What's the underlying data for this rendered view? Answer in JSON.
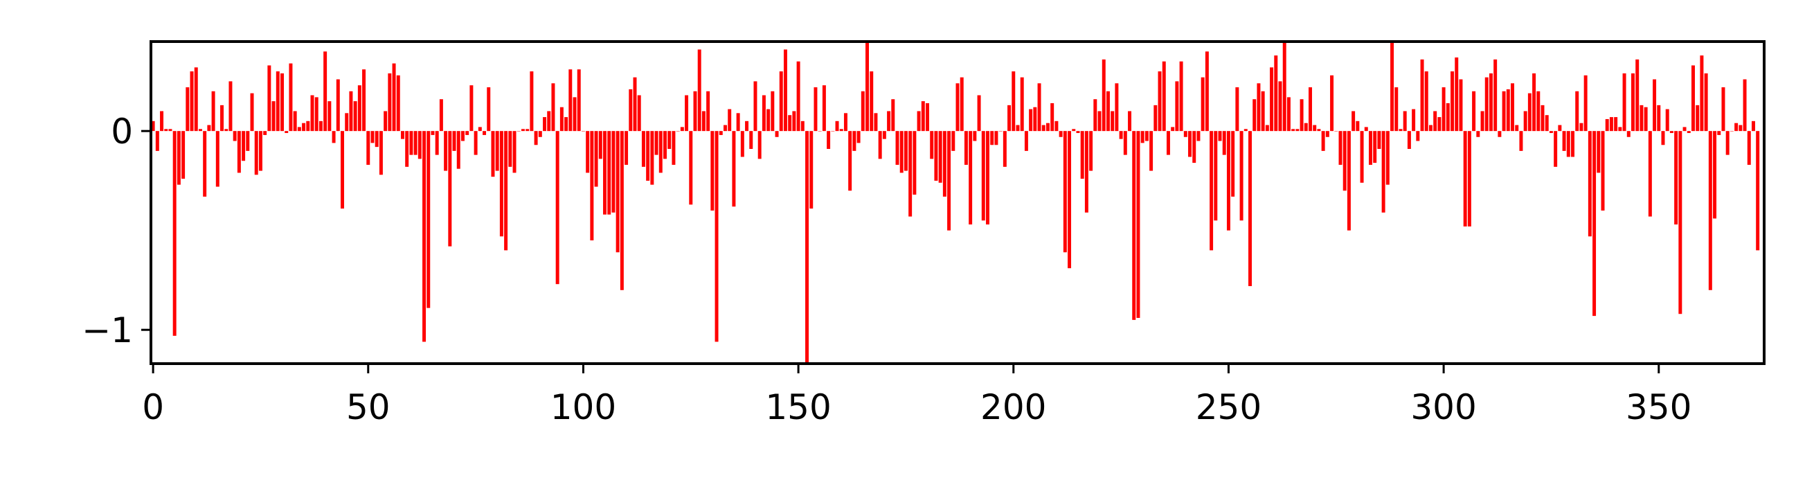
{
  "chart_data": {
    "type": "bar",
    "color": "#ff0000",
    "xlim": [
      -0.5,
      374.5
    ],
    "xticks": [
      0,
      50,
      100,
      150,
      200,
      250,
      300,
      350
    ],
    "ylim": [
      -1.17,
      0.45
    ],
    "yticks": [
      {
        "value": -1,
        "label": "−1"
      },
      0
    ],
    "values": [
      0.05,
      -0.1,
      0.1,
      0.01,
      0.01,
      -1.03,
      -0.27,
      -0.24,
      0.22,
      0.3,
      0.32,
      0.01,
      -0.33,
      0.03,
      0.2,
      -0.28,
      0.13,
      0.01,
      0.25,
      -0.05,
      -0.21,
      -0.15,
      -0.1,
      0.19,
      -0.22,
      -0.2,
      -0.02,
      0.33,
      0.15,
      0.3,
      0.29,
      -0.01,
      0.34,
      0.1,
      0.02,
      0.04,
      0.05,
      0.18,
      0.17,
      0.05,
      0.4,
      0.15,
      -0.06,
      0.26,
      -0.39,
      0.09,
      0.2,
      0.15,
      0.23,
      0.31,
      -0.17,
      -0.06,
      -0.08,
      -0.22,
      0.1,
      0.29,
      0.34,
      0.28,
      -0.04,
      -0.18,
      -0.12,
      -0.12,
      -0.14,
      -1.06,
      -0.89,
      -0.02,
      -0.12,
      0.16,
      -0.2,
      -0.58,
      -0.1,
      -0.19,
      -0.05,
      -0.02,
      0.23,
      -0.12,
      0.02,
      -0.02,
      0.22,
      -0.23,
      -0.2,
      -0.53,
      -0.6,
      -0.18,
      -0.21,
      0,
      0.01,
      0.01,
      0.3,
      -0.07,
      -0.03,
      0.07,
      0.1,
      0.24,
      -0.77,
      0.12,
      0.07,
      0.31,
      0.17,
      0.31,
      0,
      -0.21,
      -0.55,
      -0.28,
      -0.14,
      -0.42,
      -0.42,
      -0.41,
      -0.61,
      -0.8,
      -0.17,
      0.21,
      0.27,
      0.18,
      -0.18,
      -0.25,
      -0.27,
      -0.12,
      -0.21,
      -0.14,
      -0.09,
      -0.17,
      0,
      0.02,
      0.18,
      -0.37,
      0.2,
      0.41,
      0.1,
      0.2,
      -0.4,
      -1.06,
      -0.02,
      0.03,
      0.11,
      -0.38,
      0.09,
      -0.13,
      0.05,
      -0.09,
      0.25,
      -0.14,
      0.18,
      0.11,
      0.2,
      -0.03,
      0.3,
      0.41,
      0.08,
      0.1,
      0.35,
      0.05,
      -1.17,
      -0.39,
      0.22,
      0,
      0.23,
      -0.09,
      0,
      0.05,
      0.01,
      0.09,
      -0.3,
      -0.1,
      -0.06,
      0.2,
      0.45,
      0.3,
      0.09,
      -0.14,
      -0.04,
      0.1,
      0.16,
      -0.17,
      -0.21,
      -0.2,
      -0.43,
      -0.32,
      0.1,
      0.15,
      0.14,
      -0.14,
      -0.25,
      -0.26,
      -0.33,
      -0.5,
      -0.1,
      0.24,
      0.27,
      -0.17,
      -0.47,
      -0.05,
      0.18,
      -0.45,
      -0.47,
      -0.07,
      -0.07,
      0,
      -0.18,
      0.13,
      0.3,
      0.03,
      0.27,
      -0.1,
      0.11,
      0.12,
      0.24,
      0.03,
      0.04,
      0.14,
      0.05,
      -0.03,
      -0.61,
      -0.69,
      0.01,
      -0.01,
      -0.24,
      -0.41,
      -0.2,
      0.16,
      0.1,
      0.36,
      0.2,
      0.1,
      0.24,
      -0.04,
      -0.12,
      0.1,
      -0.95,
      -0.94,
      -0.06,
      -0.05,
      -0.2,
      0.13,
      0.3,
      0.35,
      -0.12,
      0.02,
      0.25,
      0.35,
      -0.03,
      -0.13,
      -0.16,
      -0.05,
      0.27,
      0.4,
      -0.6,
      -0.45,
      -0.05,
      -0.12,
      -0.5,
      -0.33,
      0.22,
      -0.45,
      0.01,
      -0.78,
      0.16,
      0.24,
      0.2,
      0.03,
      0.32,
      0.38,
      0.25,
      0.45,
      0.17,
      0.01,
      0.01,
      0.16,
      0.04,
      0.22,
      0.03,
      0.01,
      -0.1,
      -0.03,
      0.28,
      0,
      -0.17,
      -0.3,
      -0.5,
      0.1,
      0.05,
      -0.26,
      0.02,
      -0.17,
      -0.16,
      -0.09,
      -0.41,
      -0.27,
      0.45,
      0.22,
      0.01,
      0.1,
      -0.09,
      0.11,
      -0.05,
      0.36,
      0.3,
      0.03,
      0.1,
      0.07,
      0.22,
      0.14,
      0.3,
      0.37,
      0.26,
      -0.48,
      -0.48,
      0.2,
      -0.03,
      0.1,
      0.27,
      0.29,
      0.36,
      -0.03,
      0.2,
      0.21,
      0.24,
      0.03,
      -0.1,
      0.1,
      0.19,
      0.29,
      0.2,
      0.13,
      0.08,
      -0.01,
      -0.18,
      0.03,
      -0.1,
      -0.13,
      -0.13,
      0.2,
      0.04,
      0.28,
      -0.53,
      -0.93,
      -0.21,
      -0.4,
      0.06,
      0.07,
      0.07,
      0.02,
      0.29,
      -0.03,
      0.29,
      0.36,
      0.13,
      0.12,
      -0.43,
      0.26,
      0.13,
      -0.07,
      0.11,
      -0.01,
      -0.47,
      -0.92,
      0.02,
      -0.01,
      0.33,
      0.13,
      0.38,
      0.29,
      -0.8,
      -0.44,
      -0.02,
      0.22,
      -0.12,
      0,
      0.04,
      0.03,
      0.26,
      -0.17,
      0.05,
      -0.6
    ]
  }
}
